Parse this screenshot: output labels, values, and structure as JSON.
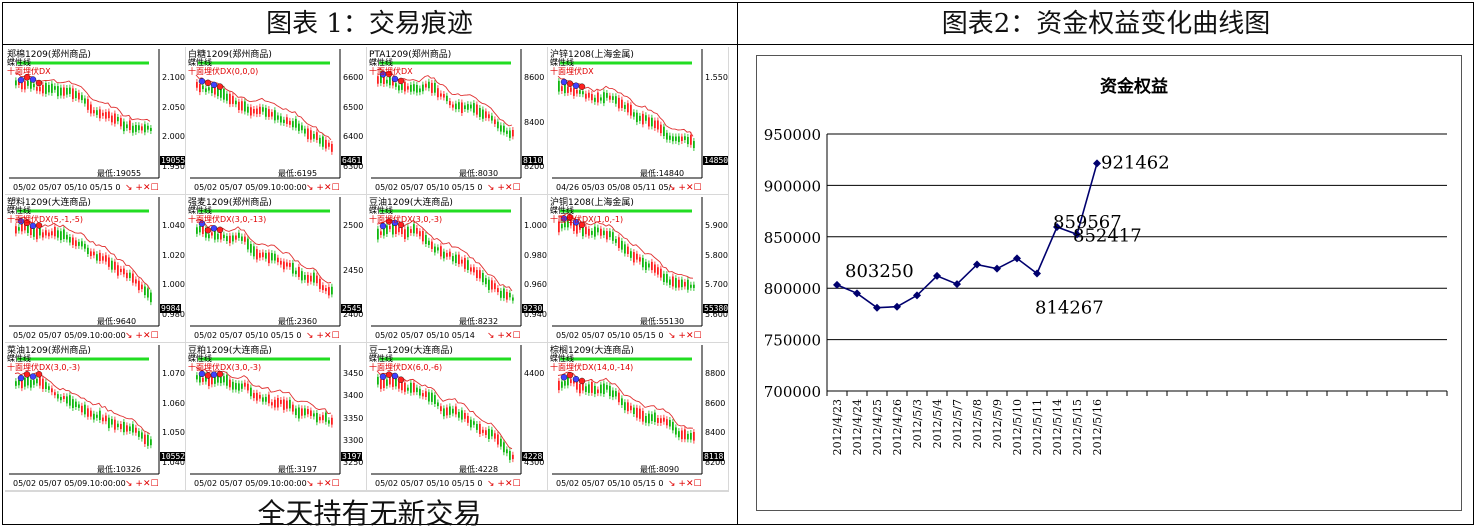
{
  "headers": {
    "left": "图表 1：交易痕迹",
    "right": "图表2：资金权益变化曲线图"
  },
  "caption": "全天持有无新交易",
  "panels": [
    {
      "title": "郑棉1209(郑州商品)",
      "line": "蝶性线",
      "note": "十面埋伏DX",
      "low": "最低:19055",
      "last": "19055",
      "dates": "05/02  05/07  05/10  05/15  0",
      "yticks": [
        "2.100",
        "2.050",
        "2.000",
        "1.950"
      ]
    },
    {
      "title": "白糖1209(郑州商品)",
      "line": "蝶性线",
      "note": "十面埋伏DX(0,0,0)",
      "low": "最低:6195",
      "last": "6461",
      "dates": "05/02  05/07  05/09.10:00:00",
      "yticks": [
        "6600",
        "6500",
        "6400",
        "6300"
      ]
    },
    {
      "title": "PTA1209(郑州商品)",
      "line": "蝶性线",
      "note": "十面埋伏DX",
      "low": "最低:8030",
      "last": "8110",
      "dates": "05/02  05/07  05/10  05/15  0",
      "yticks": [
        "8600",
        "8400",
        "8200"
      ]
    },
    {
      "title": "沪锌1208(上海金属)",
      "line": "蝶性线",
      "note": "十面埋伏DX",
      "low": "最低:14840",
      "last": "14850",
      "dates": "04/26  05/03  05/08  05/11  05/",
      "yticks": [
        "1.550"
      ]
    },
    {
      "title": "塑料1209(大连商品)",
      "line": "蝶性线",
      "note": "十面埋伏DX(5,-1,-5)",
      "low": "最低:9640",
      "last": "9984",
      "dates": "05/02  05/07  05/09.10:00:00",
      "yticks": [
        "1.040",
        "1.020",
        "1.000",
        "0.980"
      ]
    },
    {
      "title": "强麦1209(郑州商品)",
      "line": "蝶性线",
      "note": "十面埋伏DX(3,0,-13)",
      "low": "最低:2360",
      "last": "2545",
      "dates": "05/02  05/07  05/10  05/15  0",
      "yticks": [
        "2500",
        "2450",
        "2400"
      ]
    },
    {
      "title": "豆油1209(大连商品)",
      "line": "蝶性线",
      "note": "十面埋伏DX(3,0,-3)",
      "low": "最低:8232",
      "last": "9230",
      "dates": "05/02  05/07  05/10  05/14",
      "yticks": [
        "1.000",
        "0.980",
        "0.960",
        "0.940"
      ]
    },
    {
      "title": "沪铜1208(上海金属)",
      "line": "蝶性线",
      "note": "十面埋伏DX(1,0,-1)",
      "low": "最低:55130",
      "last": "55380",
      "dates": "05/02  05/07  05/10  05/15  0",
      "yticks": [
        "5.900",
        "5.800",
        "5.700",
        "5.600"
      ]
    },
    {
      "title": "菜油1209(郑州商品)",
      "line": "蝶性线",
      "note": "十面埋伏DX(3,0,-3)",
      "low": "最低:10326",
      "last": "10552",
      "dates": "05/02  05/07  05/09.10:00:00",
      "yticks": [
        "1.070",
        "1.060",
        "1.050",
        "1.040"
      ]
    },
    {
      "title": "豆粕1209(大连商品)",
      "line": "蝶性线",
      "note": "十面埋伏DX(3,0,-3)",
      "low": "最低:3197",
      "last": "3197",
      "dates": "05/02  05/07  05/09.10:00:00",
      "yticks": [
        "3450",
        "3400",
        "3350",
        "3300",
        "3250"
      ]
    },
    {
      "title": "豆一1209(大连商品)",
      "line": "蝶性线",
      "note": "十面埋伏DX(6,0,-6)",
      "low": "最低:4228",
      "last": "4228",
      "dates": "05/02  05/07  05/10  05/15  0",
      "yticks": [
        "4400",
        "4300"
      ]
    },
    {
      "title": "棕榈1209(大连商品)",
      "line": "蝶性线",
      "note": "十面埋伏DX(14,0,-14)",
      "low": "最低:8090",
      "last": "8118",
      "dates": "05/02  05/07  05/10  05/15  0",
      "yticks": [
        "8800",
        "8600",
        "8400",
        "8200"
      ]
    }
  ],
  "panel_controls": "↘ +✕☐",
  "chart_data": {
    "type": "line",
    "title": "资金权益",
    "categories": [
      "2012/4/23",
      "2012/4/24",
      "2012/4/25",
      "2012/4/26",
      "2012/5/3",
      "2012/5/4",
      "2012/5/7",
      "2012/5/8",
      "2012/5/9",
      "2012/5/10",
      "2012/5/11",
      "2012/5/14",
      "2012/5/15",
      "2012/5/16"
    ],
    "extra_empty_categories": 17,
    "series": [
      {
        "values": [
          803250,
          795000,
          781000,
          782000,
          793000,
          812000,
          804000,
          823000,
          819000,
          829000,
          814267,
          859567,
          852417,
          921462
        ]
      }
    ],
    "data_labels": [
      {
        "index": 0,
        "text": "803250"
      },
      {
        "index": 10,
        "text": "814267"
      },
      {
        "index": 11,
        "text": "859567"
      },
      {
        "index": 12,
        "text": "852417"
      },
      {
        "index": 13,
        "text": "921462"
      }
    ],
    "ylim": [
      700000,
      950000
    ],
    "yticks": [
      "950000",
      "900000",
      "850000",
      "800000",
      "750000",
      "700000"
    ],
    "grid": true,
    "color": "#00006e"
  }
}
